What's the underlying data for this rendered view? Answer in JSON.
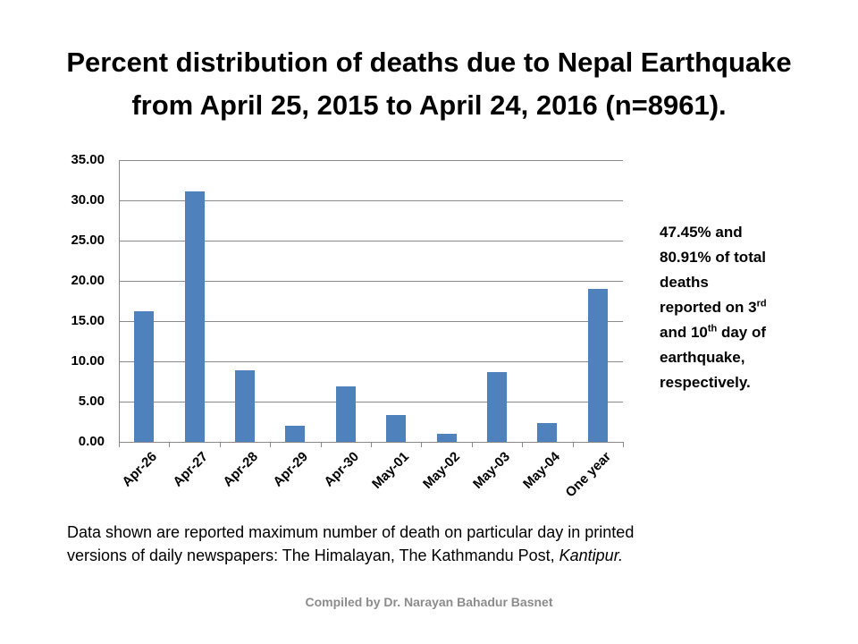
{
  "slide": {
    "title_line1": "Percent distribution of deaths due to Nepal Earthquake",
    "title_line2": "from April 25, 2015 to April 24, 2016 (n=8961).",
    "side_note": {
      "line1": "47.45% and",
      "line2": "80.91% of total",
      "line3": "deaths",
      "line4_pre": "reported on 3",
      "line4_sup": "rd",
      "line5_pre": "and 10",
      "line5_sup": "th",
      "line5_post": " day of",
      "line6": "earthquake,",
      "line7": "respectively."
    },
    "footnote": {
      "line1": "Data shown are reported maximum number of death on particular day in printed",
      "line2_pre": "versions of daily newspapers: The Himalayan, The Kathmandu Post, ",
      "line2_italic": "Kantipur."
    },
    "credit": "Compiled by Dr. Narayan Bahadur Basnet"
  },
  "chart_data": {
    "type": "bar",
    "title": "Percent distribution of deaths due to Nepal Earthquake from April 25, 2015 to April 24, 2016 (n=8961).",
    "xlabel": "",
    "ylabel": "",
    "categories": [
      "Apr-26",
      "Apr-27",
      "Apr-28",
      "Apr-29",
      "Apr-30",
      "May-01",
      "May-02",
      "May-03",
      "May-04",
      "One year"
    ],
    "values": [
      16.2,
      31.1,
      8.9,
      2.0,
      6.9,
      3.3,
      1.0,
      8.7,
      2.3,
      19.0
    ],
    "ylim": [
      0,
      35
    ],
    "yticks": [
      "0.00",
      "5.00",
      "10.00",
      "15.00",
      "20.00",
      "25.00",
      "30.00",
      "35.00"
    ],
    "grid": true,
    "legend": "none",
    "bar_color": "#4f81bd"
  }
}
